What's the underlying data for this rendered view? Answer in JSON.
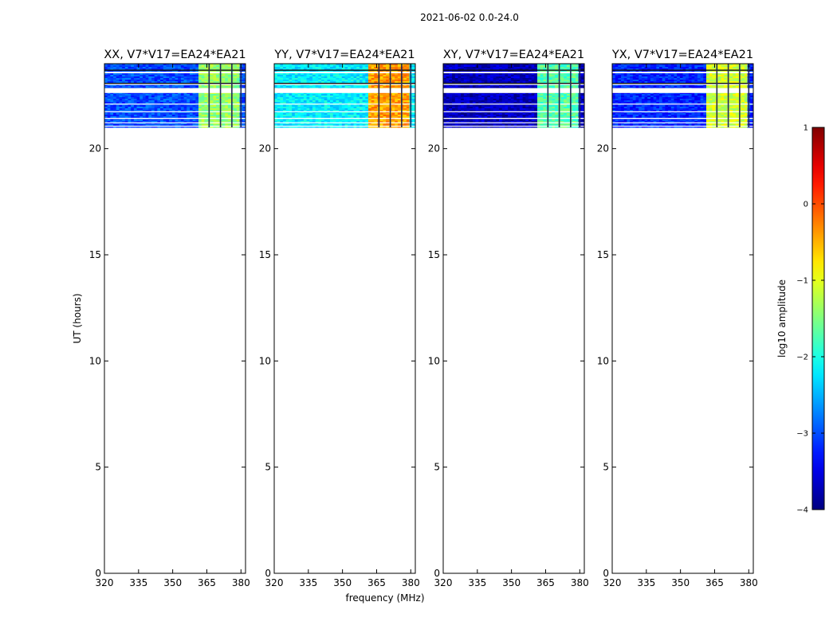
{
  "chart_data": {
    "type": "heatmap",
    "suptitle": "2021-06-02 0.0-24.0",
    "xlabel": "frequency (MHz)",
    "ylabel": "UT (hours)",
    "xlim": [
      320,
      382
    ],
    "ylim": [
      0,
      24
    ],
    "xticks": [
      "320",
      "335",
      "350",
      "365",
      "380"
    ],
    "yticks": [
      "0",
      "5",
      "10",
      "15",
      "20"
    ],
    "data_time_range_hours": [
      21.0,
      24.0
    ],
    "rfi_bands_mhz": [
      [
        361,
        366
      ],
      [
        366,
        371
      ],
      [
        371,
        376
      ],
      [
        376,
        380
      ]
    ],
    "colorbar": {
      "label": "log10 amplitude",
      "range": [
        -4,
        1
      ],
      "ticks": [
        "1",
        "0",
        "−1",
        "−2",
        "−3",
        "−4"
      ]
    },
    "panels": [
      {
        "title": "XX, V7*V17=EA24*EA21",
        "base_level": -3.0,
        "band_level": -1.4
      },
      {
        "title": "YY, V7*V17=EA24*EA21",
        "base_level": -2.2,
        "band_level": -0.4
      },
      {
        "title": "XY, V7*V17=EA24*EA21",
        "base_level": -3.7,
        "band_level": -1.7
      },
      {
        "title": "YX, V7*V17=EA24*EA21",
        "base_level": -3.2,
        "band_level": -1.1
      }
    ]
  }
}
